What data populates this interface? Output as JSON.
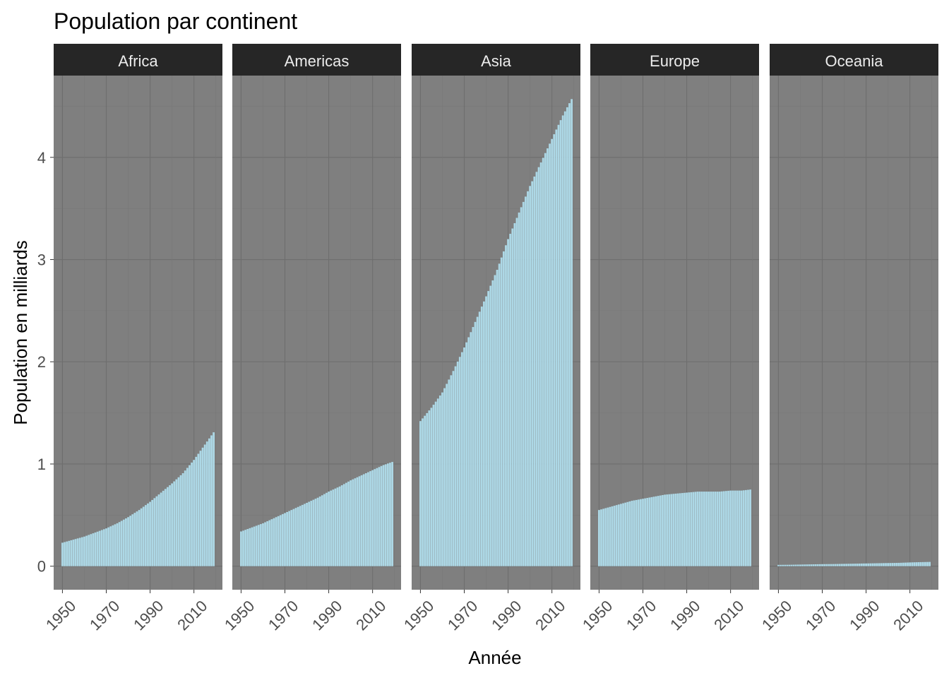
{
  "chart_data": {
    "type": "bar",
    "title": "Population par continent",
    "xlabel": "Année",
    "ylabel": "Population en milliards",
    "x_ticks": [
      "1950",
      "1970",
      "1990",
      "2010"
    ],
    "y_ticks": [
      "0",
      "1",
      "2",
      "3",
      "4"
    ],
    "xlim": [
      1946,
      2023
    ],
    "ylim": [
      -0.23,
      4.8
    ],
    "grid": true,
    "bar_color": "#add8e6",
    "panel_color": "#7f7f7f",
    "strip_color": "#262626",
    "years_range": [
      1950,
      2019
    ],
    "panels": [
      {
        "name": "Africa",
        "x": [
          1950,
          1955,
          1960,
          1965,
          1970,
          1975,
          1980,
          1985,
          1990,
          1995,
          2000,
          2005,
          2010,
          2015,
          2019
        ],
        "y": [
          0.23,
          0.26,
          0.29,
          0.33,
          0.37,
          0.42,
          0.48,
          0.55,
          0.63,
          0.72,
          0.81,
          0.91,
          1.04,
          1.19,
          1.31
        ]
      },
      {
        "name": "Americas",
        "x": [
          1950,
          1955,
          1960,
          1965,
          1970,
          1975,
          1980,
          1985,
          1990,
          1995,
          2000,
          2005,
          2010,
          2015,
          2019
        ],
        "y": [
          0.34,
          0.38,
          0.42,
          0.47,
          0.52,
          0.57,
          0.62,
          0.67,
          0.73,
          0.78,
          0.84,
          0.89,
          0.94,
          0.99,
          1.02
        ]
      },
      {
        "name": "Asia",
        "x": [
          1950,
          1955,
          1960,
          1965,
          1970,
          1975,
          1980,
          1985,
          1990,
          1995,
          2000,
          2005,
          2010,
          2015,
          2019
        ],
        "y": [
          1.42,
          1.55,
          1.7,
          1.91,
          2.14,
          2.39,
          2.64,
          2.9,
          3.2,
          3.46,
          3.72,
          3.95,
          4.18,
          4.41,
          4.57
        ]
      },
      {
        "name": "Europe",
        "x": [
          1950,
          1955,
          1960,
          1965,
          1970,
          1975,
          1980,
          1985,
          1990,
          1995,
          2000,
          2005,
          2010,
          2015,
          2019
        ],
        "y": [
          0.55,
          0.58,
          0.61,
          0.64,
          0.66,
          0.68,
          0.7,
          0.71,
          0.72,
          0.73,
          0.73,
          0.73,
          0.74,
          0.74,
          0.75
        ]
      },
      {
        "name": "Oceania",
        "x": [
          1950,
          1955,
          1960,
          1965,
          1970,
          1975,
          1980,
          1985,
          1990,
          1995,
          2000,
          2005,
          2010,
          2015,
          2019
        ],
        "y": [
          0.013,
          0.014,
          0.016,
          0.018,
          0.02,
          0.021,
          0.023,
          0.025,
          0.027,
          0.029,
          0.031,
          0.033,
          0.037,
          0.04,
          0.042
        ]
      }
    ]
  }
}
